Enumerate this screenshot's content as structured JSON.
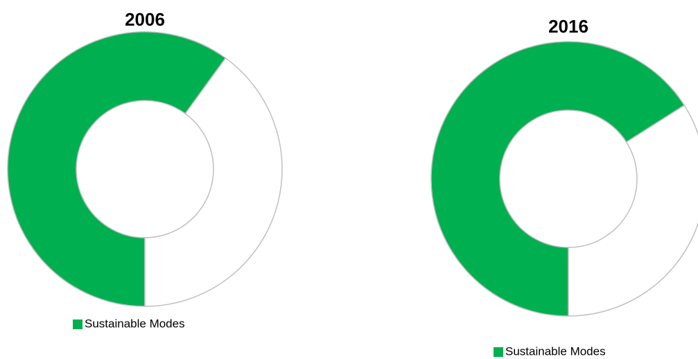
{
  "chart_data": [
    {
      "type": "donut",
      "title": "2006",
      "categories": [
        "Sustainable Modes",
        null
      ],
      "values": [
        60,
        40
      ],
      "colors": [
        "#00b050",
        "#ffffff"
      ],
      "legend": "bottom"
    },
    {
      "type": "donut",
      "title": "2016",
      "categories": [
        "Sustainable Modes",
        null
      ],
      "values": [
        66,
        34
      ],
      "colors": [
        "#00b050",
        "#ffffff"
      ],
      "legend": "bottom"
    }
  ]
}
